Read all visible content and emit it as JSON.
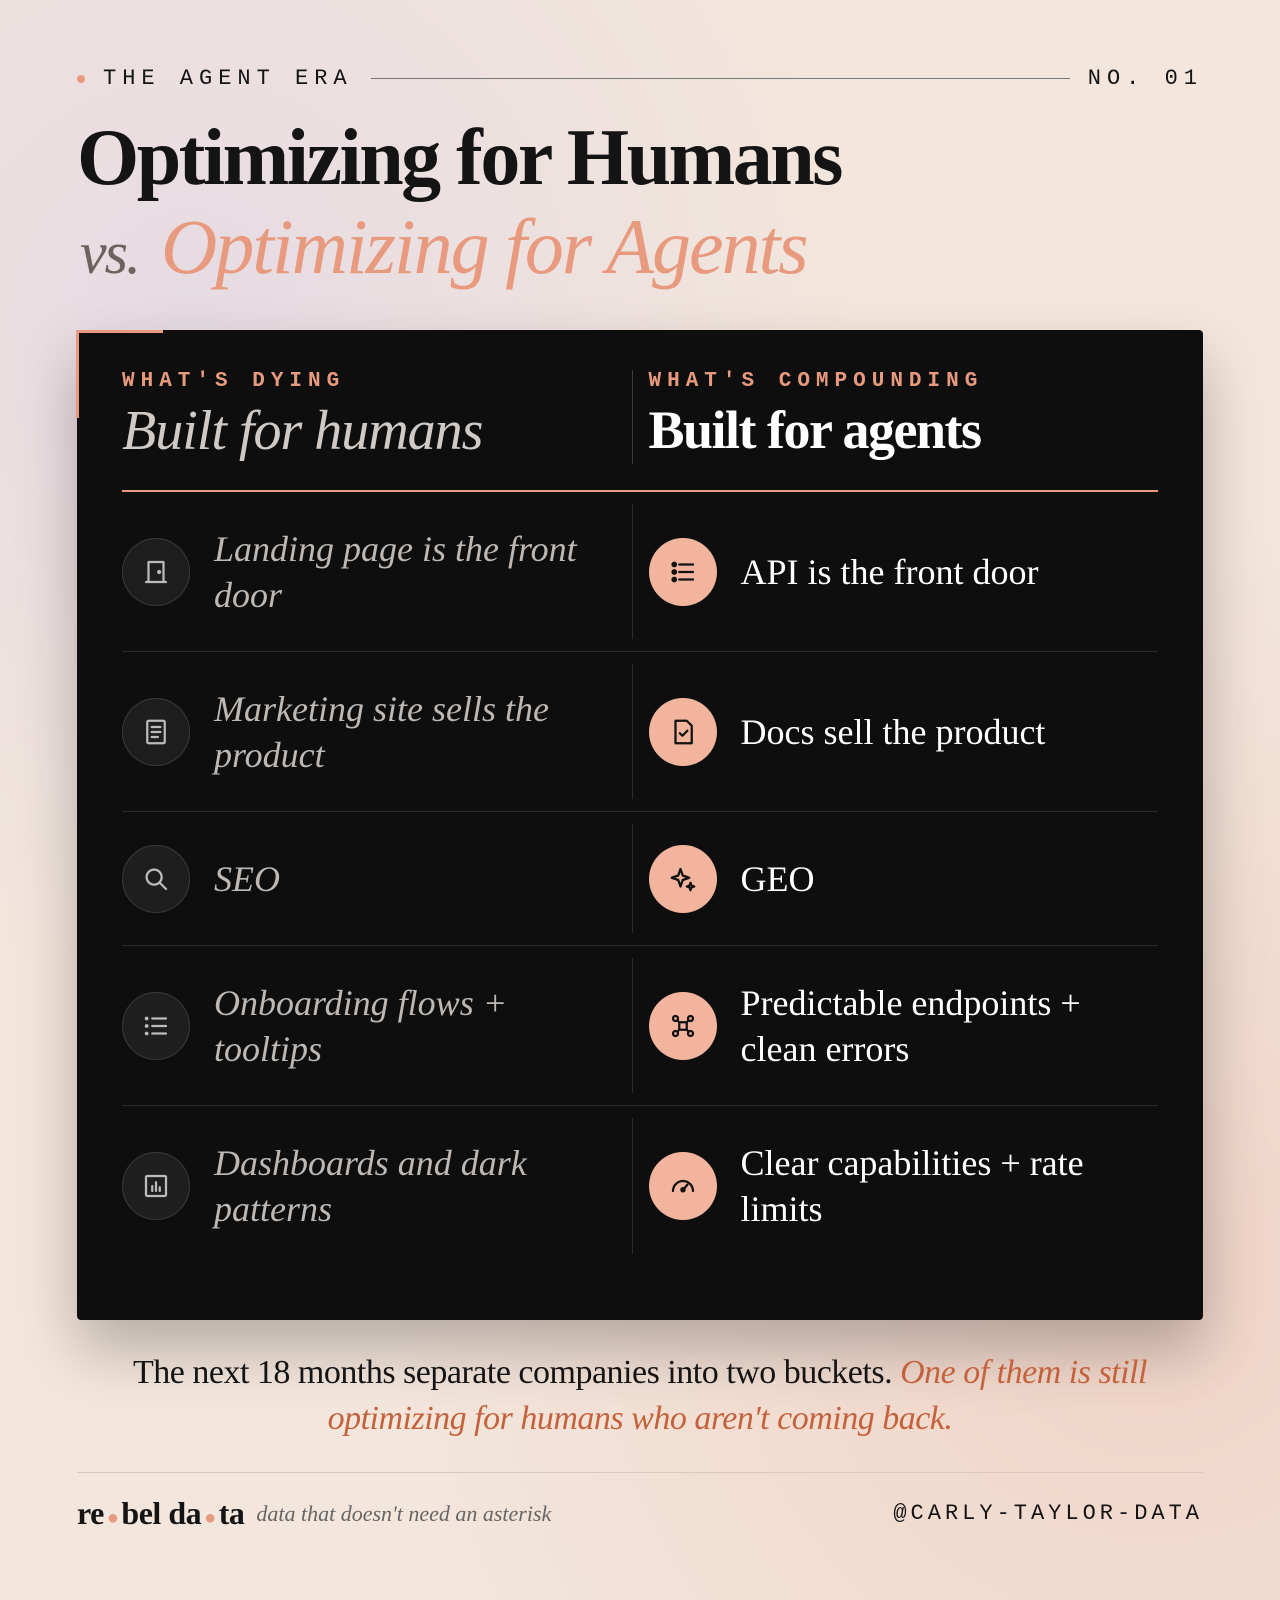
{
  "header": {
    "kicker": "THE AGENT ERA",
    "number": "NO. 01"
  },
  "title": {
    "line1": "Optimizing for Humans",
    "vs": "vs.",
    "line2": "Optimizing for Agents"
  },
  "table": {
    "left": {
      "label": "WHAT'S DYING",
      "heading": "Built for humans"
    },
    "right": {
      "label": "WHAT'S COMPOUNDING",
      "heading": "Built for agents"
    },
    "rows": [
      [
        "Landing page is the front door",
        "API is the front door"
      ],
      [
        "Marketing site sells the product",
        "Docs sell the product"
      ],
      [
        "SEO",
        "GEO"
      ],
      [
        "Onboarding flows + tooltips",
        "Predictable endpoints + clean errors"
      ],
      [
        "Dashboards and dark patterns",
        "Clear capabilities + rate limits"
      ]
    ]
  },
  "note": {
    "text": "The next 18 months separate companies into two buckets.",
    "emphasis": "One of them is still optimizing for humans who aren't coming back."
  },
  "footer": {
    "brand": [
      "re",
      "bel da",
      "ta"
    ],
    "tagline": "data that doesn't need an asterisk",
    "handle": "@CARLY-TAYLOR-DATA"
  }
}
